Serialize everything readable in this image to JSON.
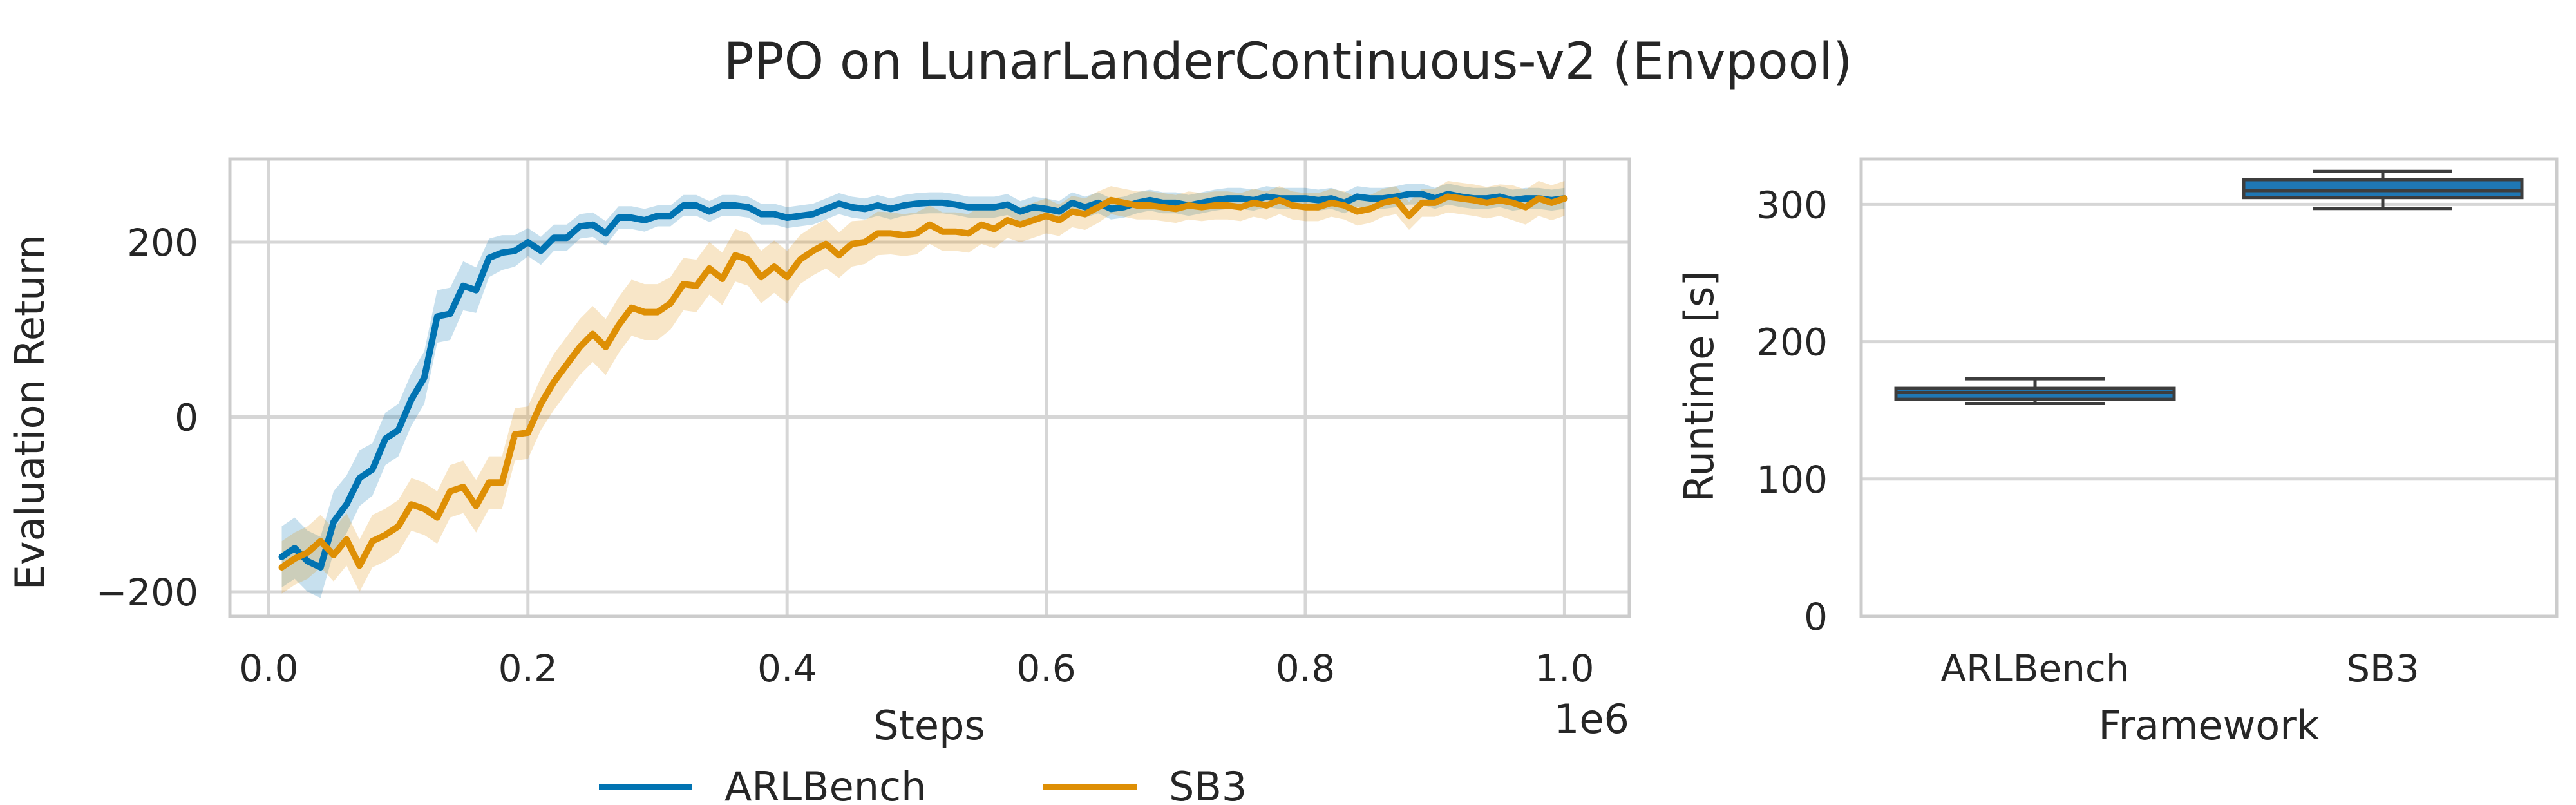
{
  "figure": {
    "title": "PPO on LunarLanderContinuous-v2 (Envpool)"
  },
  "colors": {
    "arlbench": "#0173b2",
    "sb3": "#de8f05",
    "box_fill": "#1f77b4",
    "box_edge": "#3d3d3d"
  },
  "chart_data": [
    {
      "type": "line",
      "xlabel": "Steps",
      "ylabel": "Evaluation Return",
      "x_offset_label": "1e6",
      "xlim": [
        -0.03,
        1.05
      ],
      "ylim": [
        -228,
        295
      ],
      "xticks": [
        0.0,
        0.2,
        0.4,
        0.6,
        0.8,
        1.0
      ],
      "xtick_labels": [
        "0.0",
        "0.2",
        "0.4",
        "0.6",
        "0.8",
        "1.0"
      ],
      "yticks": [
        -200,
        0,
        200
      ],
      "ytick_labels": [
        "−200",
        "0",
        "200"
      ],
      "grid": true,
      "legend": {
        "placement": "bottom-center-outside",
        "entries": [
          "ARLBench",
          "SB3"
        ]
      },
      "series": [
        {
          "name": "ARLBench",
          "x": [
            0.01,
            0.02,
            0.03,
            0.04,
            0.05,
            0.06,
            0.07,
            0.08,
            0.09,
            0.1,
            0.11,
            0.12,
            0.13,
            0.14,
            0.15,
            0.16,
            0.17,
            0.18,
            0.19,
            0.2,
            0.21,
            0.22,
            0.23,
            0.24,
            0.25,
            0.26,
            0.27,
            0.28,
            0.29,
            0.3,
            0.31,
            0.32,
            0.33,
            0.34,
            0.35,
            0.36,
            0.37,
            0.38,
            0.39,
            0.4,
            0.41,
            0.42,
            0.43,
            0.44,
            0.45,
            0.46,
            0.47,
            0.48,
            0.49,
            0.5,
            0.51,
            0.52,
            0.53,
            0.54,
            0.55,
            0.56,
            0.57,
            0.58,
            0.59,
            0.6,
            0.61,
            0.62,
            0.63,
            0.64,
            0.65,
            0.66,
            0.67,
            0.68,
            0.69,
            0.7,
            0.71,
            0.72,
            0.73,
            0.74,
            0.75,
            0.76,
            0.77,
            0.78,
            0.79,
            0.8,
            0.81,
            0.82,
            0.83,
            0.84,
            0.85,
            0.86,
            0.87,
            0.88,
            0.89,
            0.9,
            0.91,
            0.92,
            0.93,
            0.94,
            0.95,
            0.96,
            0.97,
            0.98,
            0.99,
            1.0
          ],
          "y": [
            -160,
            -150,
            -165,
            -172,
            -120,
            -100,
            -70,
            -60,
            -25,
            -15,
            20,
            45,
            115,
            118,
            150,
            145,
            182,
            188,
            190,
            200,
            190,
            205,
            205,
            218,
            220,
            210,
            228,
            228,
            225,
            230,
            230,
            242,
            242,
            235,
            242,
            242,
            240,
            232,
            232,
            228,
            230,
            232,
            238,
            244,
            240,
            238,
            242,
            238,
            242,
            244,
            245,
            245,
            243,
            240,
            240,
            240,
            243,
            235,
            240,
            238,
            235,
            245,
            240,
            245,
            238,
            240,
            245,
            248,
            245,
            245,
            242,
            245,
            248,
            250,
            250,
            248,
            252,
            250,
            250,
            250,
            248,
            250,
            245,
            252,
            250,
            250,
            252,
            255,
            255,
            250,
            255,
            252,
            250,
            250,
            252,
            248,
            250,
            250,
            248,
            250
          ],
          "band": [
            35,
            35,
            35,
            35,
            35,
            33,
            32,
            30,
            30,
            30,
            30,
            30,
            30,
            30,
            28,
            26,
            22,
            20,
            18,
            16,
            16,
            15,
            15,
            14,
            14,
            14,
            13,
            13,
            13,
            12,
            12,
            12,
            12,
            12,
            12,
            12,
            12,
            12,
            12,
            12,
            12,
            12,
            12,
            12,
            12,
            12,
            12,
            12,
            12,
            12,
            12,
            12,
            12,
            12,
            12,
            12,
            12,
            12,
            12,
            12,
            12,
            12,
            12,
            12,
            12,
            12,
            12,
            12,
            12,
            12,
            12,
            12,
            12,
            12,
            12,
            12,
            12,
            12,
            12,
            12,
            12,
            12,
            12,
            12,
            12,
            12,
            12,
            12,
            12,
            12,
            12,
            12,
            12,
            12,
            12,
            12,
            12,
            12,
            12,
            12
          ]
        },
        {
          "name": "SB3",
          "x": [
            0.01,
            0.02,
            0.03,
            0.04,
            0.05,
            0.06,
            0.07,
            0.08,
            0.09,
            0.1,
            0.11,
            0.12,
            0.13,
            0.14,
            0.15,
            0.16,
            0.17,
            0.18,
            0.19,
            0.2,
            0.21,
            0.22,
            0.23,
            0.24,
            0.25,
            0.26,
            0.27,
            0.28,
            0.29,
            0.3,
            0.31,
            0.32,
            0.33,
            0.34,
            0.35,
            0.36,
            0.37,
            0.38,
            0.39,
            0.4,
            0.41,
            0.42,
            0.43,
            0.44,
            0.45,
            0.46,
            0.47,
            0.48,
            0.49,
            0.5,
            0.51,
            0.52,
            0.53,
            0.54,
            0.55,
            0.56,
            0.57,
            0.58,
            0.59,
            0.6,
            0.61,
            0.62,
            0.63,
            0.64,
            0.65,
            0.66,
            0.67,
            0.68,
            0.69,
            0.7,
            0.71,
            0.72,
            0.73,
            0.74,
            0.75,
            0.76,
            0.77,
            0.78,
            0.79,
            0.8,
            0.81,
            0.82,
            0.83,
            0.84,
            0.85,
            0.86,
            0.87,
            0.88,
            0.89,
            0.9,
            0.91,
            0.92,
            0.93,
            0.94,
            0.95,
            0.96,
            0.97,
            0.98,
            0.99,
            1.0
          ],
          "y": [
            -172,
            -162,
            -155,
            -142,
            -158,
            -140,
            -170,
            -142,
            -135,
            -125,
            -100,
            -105,
            -115,
            -85,
            -80,
            -102,
            -75,
            -75,
            -20,
            -18,
            15,
            40,
            60,
            80,
            95,
            80,
            105,
            125,
            120,
            120,
            130,
            152,
            150,
            170,
            158,
            185,
            180,
            160,
            172,
            160,
            180,
            190,
            198,
            185,
            198,
            200,
            210,
            210,
            208,
            210,
            220,
            212,
            212,
            210,
            220,
            215,
            225,
            220,
            225,
            230,
            225,
            235,
            232,
            240,
            248,
            245,
            242,
            242,
            240,
            238,
            242,
            240,
            242,
            242,
            240,
            245,
            242,
            248,
            242,
            240,
            240,
            245,
            242,
            235,
            238,
            245,
            248,
            230,
            245,
            245,
            252,
            250,
            248,
            245,
            248,
            245,
            240,
            250,
            245,
            250
          ],
          "band": [
            30,
            30,
            30,
            30,
            30,
            30,
            30,
            30,
            30,
            30,
            30,
            30,
            30,
            30,
            30,
            30,
            30,
            30,
            30,
            30,
            30,
            32,
            32,
            32,
            32,
            32,
            32,
            32,
            32,
            32,
            30,
            30,
            30,
            30,
            30,
            30,
            30,
            30,
            30,
            30,
            28,
            28,
            28,
            26,
            26,
            25,
            25,
            24,
            24,
            24,
            22,
            22,
            22,
            22,
            22,
            22,
            20,
            20,
            20,
            20,
            18,
            18,
            18,
            18,
            16,
            16,
            16,
            16,
            16,
            16,
            16,
            16,
            16,
            16,
            16,
            16,
            16,
            16,
            16,
            16,
            16,
            16,
            16,
            16,
            16,
            16,
            16,
            16,
            16,
            16,
            18,
            18,
            18,
            18,
            18,
            20,
            20,
            20,
            20,
            20
          ]
        }
      ]
    },
    {
      "type": "box",
      "xlabel": "Framework",
      "ylabel": "Runtime [s]",
      "ylim": [
        0,
        333
      ],
      "yticks": [
        0,
        100,
        200,
        300
      ],
      "ytick_labels": [
        "0",
        "100",
        "200",
        "300"
      ],
      "grid": true,
      "categories": [
        "ARLBench",
        "SB3"
      ],
      "boxes": [
        {
          "name": "ARLBench",
          "min": 155,
          "q1": 158,
          "median": 163,
          "q3": 166,
          "max": 173
        },
        {
          "name": "SB3",
          "min": 297,
          "q1": 305,
          "median": 310,
          "q3": 318,
          "max": 324
        }
      ]
    }
  ]
}
